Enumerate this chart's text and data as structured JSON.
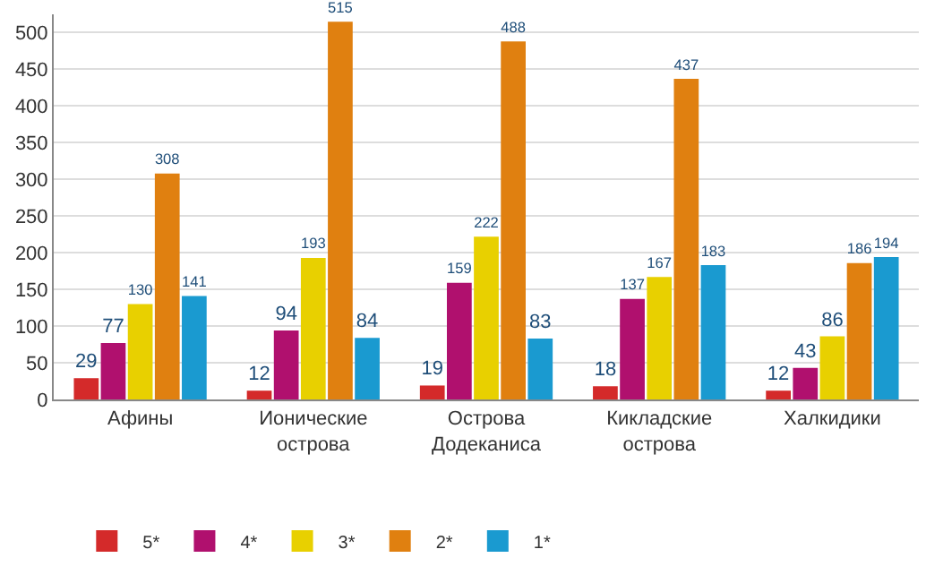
{
  "chart_data": {
    "type": "bar",
    "categories": [
      "Афины",
      "Ионические острова",
      "Острова Додеканиса",
      "Кикладские острова",
      "Халкидики"
    ],
    "series": [
      {
        "name": "5*",
        "color": "#d42a2a",
        "values": [
          29,
          12,
          19,
          18,
          12
        ]
      },
      {
        "name": "4*",
        "color": "#b0106e",
        "values": [
          77,
          94,
          159,
          137,
          43
        ]
      },
      {
        "name": "3*",
        "color": "#e8d000",
        "values": [
          130,
          193,
          222,
          167,
          86
        ]
      },
      {
        "name": "2*",
        "color": "#e08010",
        "values": [
          308,
          515,
          488,
          437,
          186
        ]
      },
      {
        "name": "1*",
        "color": "#1a9ad0",
        "values": [
          141,
          84,
          83,
          183,
          194
        ]
      }
    ],
    "ylim": [
      0,
      525
    ],
    "yticks": [
      0,
      50,
      100,
      150,
      200,
      250,
      300,
      350,
      400,
      450,
      500
    ],
    "grid": "y",
    "legend": "bottom",
    "data_labels": true
  }
}
